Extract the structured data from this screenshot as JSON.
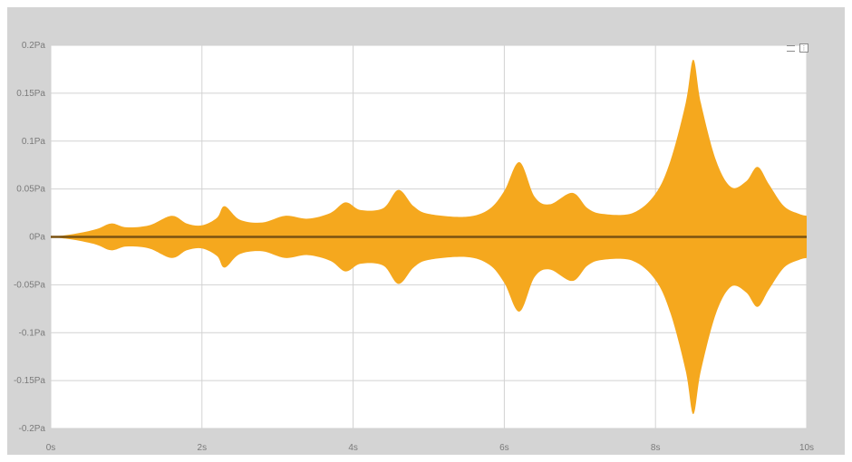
{
  "chart_data": {
    "type": "area",
    "title": "",
    "xlabel": "",
    "ylabel": "",
    "xlim": [
      0,
      10
    ],
    "ylim": [
      -0.2,
      0.2
    ],
    "x_ticks": [
      0,
      2,
      4,
      6,
      8,
      10
    ],
    "x_tick_labels": [
      "0s",
      "2s",
      "4s",
      "6s",
      "8s",
      "10s"
    ],
    "y_ticks": [
      0.2,
      0.15,
      0.1,
      0.05,
      0,
      -0.05,
      -0.1,
      -0.15,
      -0.2
    ],
    "y_tick_labels": [
      "0.2Pa",
      "0.15Pa",
      "0.1Pa",
      "0.05Pa",
      "0Pa",
      "-0.05Pa",
      "-0.1Pa",
      "-0.15Pa",
      "-0.2Pa"
    ],
    "grid": true,
    "envelope_symmetric": true,
    "series": [
      {
        "color": "#f5a81e",
        "x": [
          0,
          0.3,
          0.6,
          0.8,
          1.0,
          1.3,
          1.6,
          1.8,
          2.0,
          2.2,
          2.3,
          2.5,
          2.8,
          3.1,
          3.4,
          3.7,
          3.9,
          4.1,
          4.4,
          4.6,
          4.8,
          5.0,
          5.5,
          5.8,
          6.0,
          6.2,
          6.4,
          6.6,
          6.9,
          7.1,
          7.3,
          7.7,
          8.0,
          8.2,
          8.4,
          8.5,
          8.6,
          8.8,
          9.0,
          9.2,
          9.35,
          9.5,
          9.7,
          9.9,
          10.0
        ],
        "values": [
          0.0,
          0.003,
          0.008,
          0.014,
          0.01,
          0.012,
          0.022,
          0.014,
          0.012,
          0.02,
          0.032,
          0.018,
          0.015,
          0.022,
          0.019,
          0.025,
          0.036,
          0.028,
          0.03,
          0.049,
          0.032,
          0.024,
          0.021,
          0.029,
          0.048,
          0.078,
          0.042,
          0.034,
          0.046,
          0.03,
          0.024,
          0.025,
          0.045,
          0.08,
          0.14,
          0.185,
          0.14,
          0.08,
          0.052,
          0.058,
          0.073,
          0.055,
          0.032,
          0.024,
          0.022
        ]
      }
    ]
  },
  "icons": {
    "legend": "legend-icon",
    "menu": "chart-menu-icon"
  },
  "colors": {
    "fill": "#f5a81e",
    "zero_line": "#7a5212",
    "background": "#d4d4d4",
    "plot": "#ffffff"
  }
}
